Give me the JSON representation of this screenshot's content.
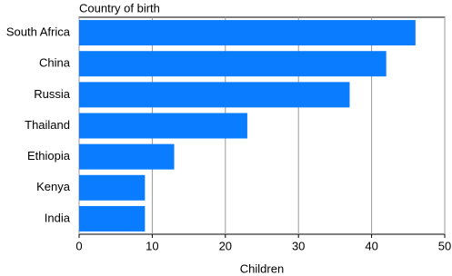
{
  "chart_data": {
    "type": "bar",
    "orientation": "horizontal",
    "ylabel": "Country of birth",
    "xlabel": "Children",
    "categories": [
      "South Africa",
      "China",
      "Russia",
      "Thailand",
      "Ethiopia",
      "Kenya",
      "India"
    ],
    "values": [
      46,
      42,
      37,
      23,
      13,
      9,
      9
    ],
    "color": "#0a7cff",
    "xlim": [
      0,
      50
    ],
    "xticks": [
      0,
      10,
      20,
      30,
      40,
      50
    ],
    "grid": true
  }
}
